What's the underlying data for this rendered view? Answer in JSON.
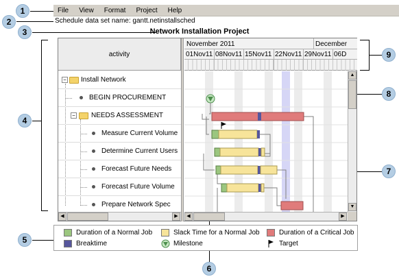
{
  "menu": [
    "File",
    "View",
    "Format",
    "Project",
    "Help"
  ],
  "dataset_label": "Schedule data set name: gantt.netinstallsched",
  "project_title": "Network Installation Project",
  "activity_header": "activity",
  "months": [
    "November 2011",
    "December"
  ],
  "weeks": [
    "01Nov11",
    "08Nov11",
    "15Nov11",
    "22Nov11",
    "29Nov11",
    "06D"
  ],
  "activities": [
    {
      "label": "Install Network"
    },
    {
      "label": "BEGIN PROCUREMENT"
    },
    {
      "label": "NEEDS ASSESSMENT"
    },
    {
      "label": "Measure Current Volume"
    },
    {
      "label": "Determine Current Users"
    },
    {
      "label": "Forecast Future Needs"
    },
    {
      "label": "Forecast Future Volume"
    },
    {
      "label": "Prepare Network Spec"
    }
  ],
  "legend": [
    {
      "label": "Duration of a Normal Job",
      "color": "#9bc67f"
    },
    {
      "label": "Slack Time for a Normal Job",
      "color": "#f7e49a"
    },
    {
      "label": "Duration of a Critical Job",
      "color": "#e07b7b"
    },
    {
      "label": "Breaktime",
      "color": "#56569c"
    },
    {
      "label": "Milestone"
    },
    {
      "label": "Target"
    }
  ],
  "callouts": [
    "1",
    "2",
    "3",
    "4",
    "5",
    "6",
    "7",
    "8",
    "9"
  ],
  "colors": {
    "normal": "#9bc67f",
    "slack": "#f7e49a",
    "critical": "#e07b7b",
    "breaktime": "#56569c",
    "weekend": "#ececec",
    "today": "#d6d6f6"
  }
}
